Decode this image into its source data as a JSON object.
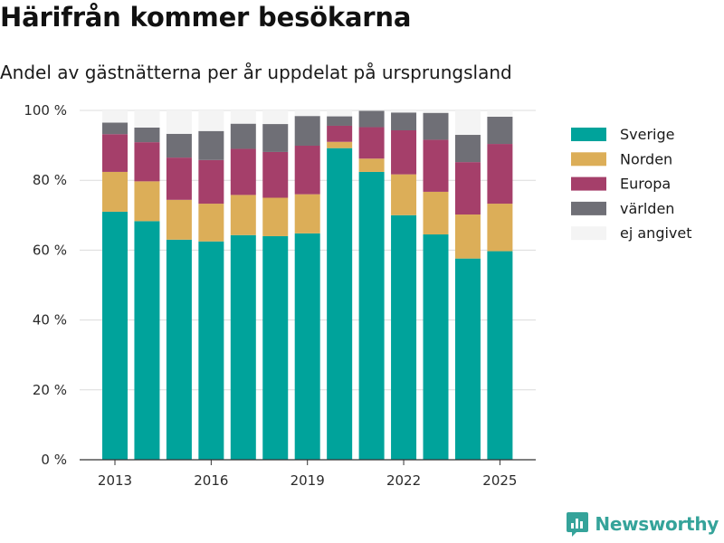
{
  "title": "Härifrån kommer besökarna",
  "subtitle": "Andel av gästnätterna per år uppdelat på ursprungsland",
  "brand": "Newsworthy",
  "brand_color": "#35a39a",
  "chart_data": {
    "type": "bar",
    "stacked": true,
    "title": "Härifrån kommer besökarna",
    "subtitle": "Andel av gästnätterna per år uppdelat på ursprungsland",
    "xlabel": "",
    "ylabel": "",
    "categories": [
      "2013",
      "2014",
      "2015",
      "2016",
      "2017",
      "2018",
      "2019",
      "2020",
      "2021",
      "2022",
      "2023",
      "2024",
      "2025"
    ],
    "x_tick_labels": [
      "2013",
      "2016",
      "2019",
      "2022",
      "2025"
    ],
    "y_tick_labels": [
      "0 %",
      "20 %",
      "40 %",
      "60 %",
      "80 %",
      "100 %"
    ],
    "ylim": [
      0,
      100
    ],
    "grid": true,
    "legend_position": "right",
    "series": [
      {
        "name": "Sverige",
        "color": "#00a39b",
        "values": [
          71.0,
          68.3,
          63.0,
          62.5,
          64.3,
          64.0,
          64.8,
          89.2,
          82.4,
          70.0,
          64.5,
          57.6,
          59.7
        ]
      },
      {
        "name": "Norden",
        "color": "#dcae58",
        "values": [
          11.4,
          11.4,
          11.4,
          10.8,
          11.5,
          11.0,
          11.2,
          1.8,
          3.8,
          11.7,
          12.2,
          12.6,
          13.6
        ]
      },
      {
        "name": "Europa",
        "color": "#a53f6a",
        "values": [
          10.8,
          11.2,
          12.1,
          12.5,
          13.2,
          13.1,
          13.9,
          4.6,
          9.0,
          12.6,
          14.9,
          15.0,
          17.1
        ]
      },
      {
        "name": "världen",
        "color": "#6f6f76",
        "values": [
          3.3,
          4.2,
          6.8,
          8.3,
          7.2,
          8.0,
          8.5,
          2.7,
          4.7,
          5.1,
          7.7,
          7.8,
          7.8
        ]
      },
      {
        "name": "ej angivet",
        "color": "#f4f4f4",
        "values": [
          3.5,
          4.9,
          6.7,
          5.9,
          3.8,
          3.9,
          1.6,
          1.7,
          0.1,
          0.6,
          0.7,
          7.0,
          1.8
        ]
      }
    ]
  }
}
